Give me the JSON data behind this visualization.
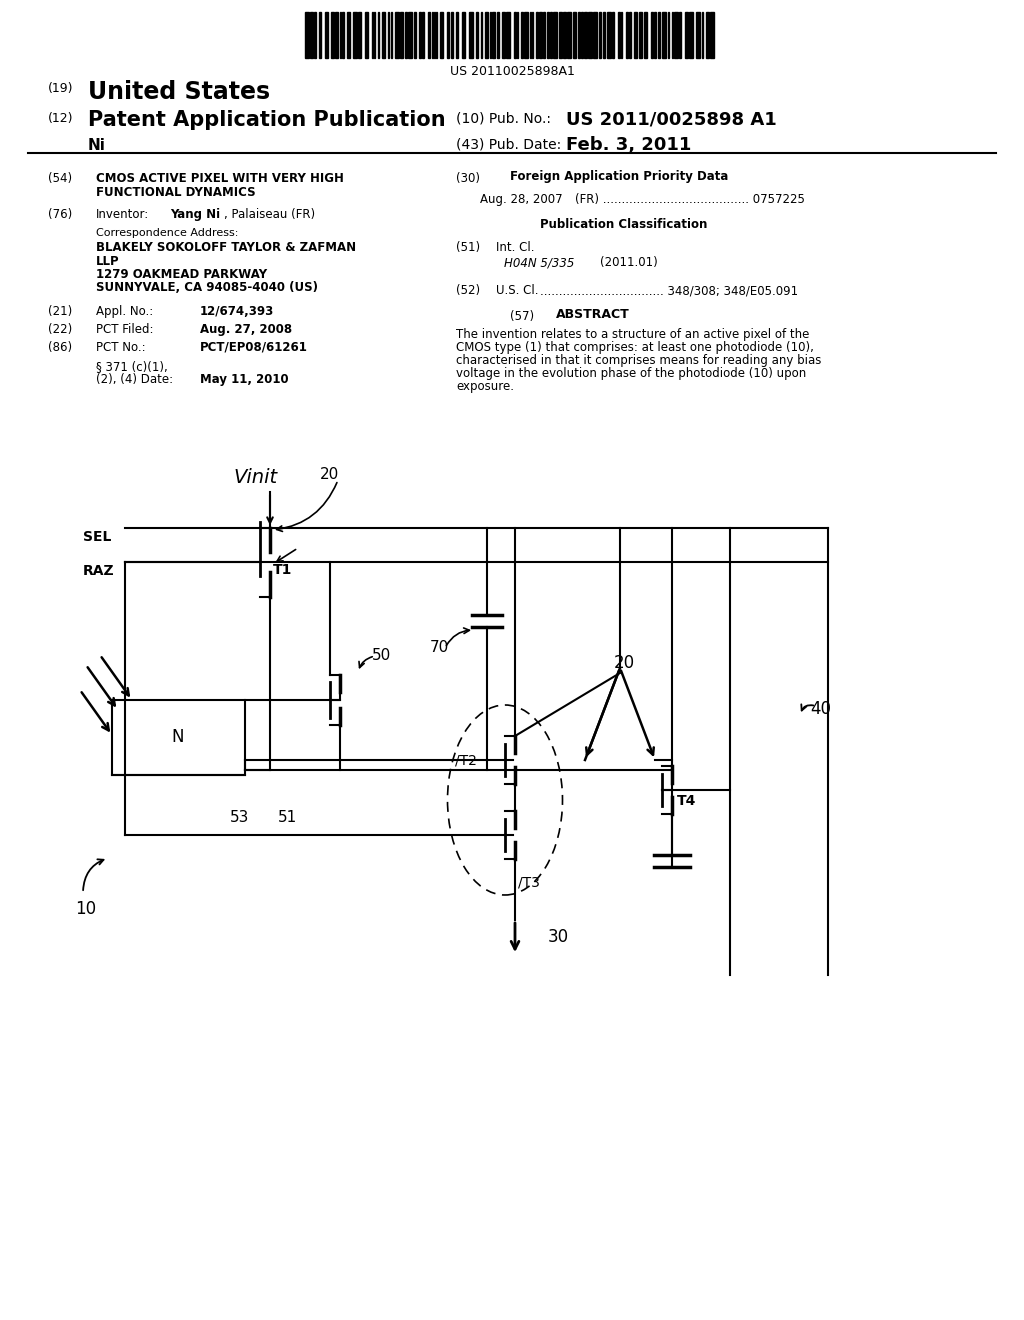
{
  "bg_color": "#ffffff",
  "barcode_text": "US 20110025898A1",
  "abstract_lines": [
    "The invention relates to a structure of an active pixel of the",
    "CMOS type (1) that comprises: at least one photodiode (10),",
    "characterised in that it comprises means for reading any bias",
    "voltage in the evolution phase of the photodiode (10) upon",
    "exposure."
  ]
}
